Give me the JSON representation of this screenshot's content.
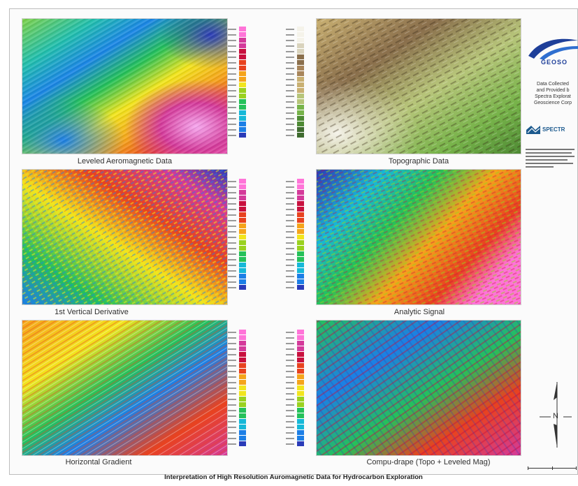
{
  "poster": {
    "title": "Interpretation of High Resolution Auromagnetic Data for Hydrocarbon Exploration"
  },
  "panels": [
    {
      "caption": "Leveled Aeromagnetic Data",
      "style": "mag"
    },
    {
      "caption": "Topographic Data",
      "style": "topo"
    },
    {
      "caption": "1st Vertical Derivative",
      "style": "deriv"
    },
    {
      "caption": "Analytic Signal",
      "style": "signal"
    },
    {
      "caption": "Horizontal Gradient",
      "style": "gradient"
    },
    {
      "caption": "Compu-drape (Topo + Leveled Mag)",
      "style": "drape"
    }
  ],
  "sidebar": {
    "logo_text": "GEOSO",
    "credit_lines": [
      "Data Collected",
      "and Provided b",
      "Spectra Explorat",
      "Geoscience Corp"
    ],
    "partner_logo_text": "SPECTR"
  },
  "north_arrow": {
    "label": "N"
  },
  "colors": {
    "mag_ramp": [
      "#2a3bb8",
      "#1c7fe6",
      "#16b8d8",
      "#25c15a",
      "#9ad11f",
      "#f2e51d",
      "#f5a41b",
      "#e8421f",
      "#c8103e",
      "#d43a9a",
      "#ff74d8"
    ],
    "topo_ramp": [
      "#3f6b2f",
      "#4e8a34",
      "#77b34a",
      "#b7c57a",
      "#c9b072",
      "#a8855a",
      "#8a6f4c",
      "#d9d3bd",
      "#f5f3ea"
    ]
  }
}
